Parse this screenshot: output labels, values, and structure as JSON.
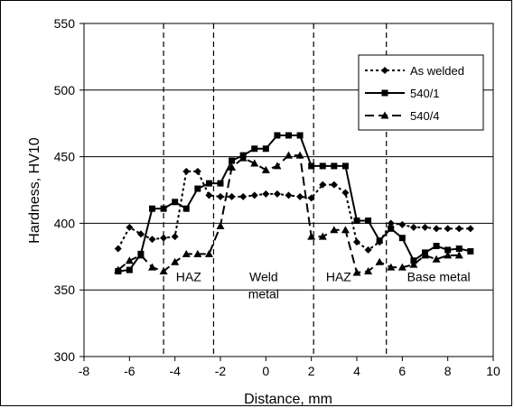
{
  "chart_data": {
    "type": "line",
    "title": "",
    "xlabel": "Distance, mm",
    "ylabel": "Hardness, HV10",
    "xlim": [
      -8,
      10
    ],
    "ylim": [
      300,
      550
    ],
    "xticks": [
      -8,
      -6,
      -4,
      -2,
      0,
      2,
      4,
      6,
      8,
      10
    ],
    "yticks": [
      300,
      350,
      400,
      450,
      500,
      550
    ],
    "grid": "horizontal",
    "legend_position": "top-right",
    "series": [
      {
        "name": "As welded",
        "line_style": "dotted",
        "marker": "diamond",
        "color": "#000000",
        "x": [
          -6.5,
          -6.0,
          -5.5,
          -5.0,
          -4.5,
          -4.0,
          -3.5,
          -3.0,
          -2.5,
          -2.0,
          -1.5,
          -1.0,
          -0.5,
          0.0,
          0.5,
          1.0,
          1.5,
          2.0,
          2.5,
          3.0,
          3.5,
          4.0,
          4.5,
          5.0,
          5.5,
          6.0,
          6.5,
          7.0,
          7.5,
          8.0,
          8.5,
          9.0
        ],
        "y": [
          381,
          397,
          392,
          388,
          389,
          390,
          439,
          439,
          421,
          420,
          420,
          420,
          421,
          422,
          422,
          421,
          420,
          419,
          429,
          429,
          423,
          386,
          380,
          386,
          400,
          399,
          397,
          397,
          396,
          396,
          396,
          396
        ]
      },
      {
        "name": "540/1",
        "line_style": "solid",
        "marker": "square",
        "color": "#000000",
        "x": [
          -6.5,
          -6.0,
          -5.5,
          -5.0,
          -4.5,
          -4.0,
          -3.5,
          -3.0,
          -2.5,
          -2.0,
          -1.5,
          -1.0,
          -0.5,
          0.0,
          0.5,
          1.0,
          1.5,
          2.0,
          2.5,
          3.0,
          3.5,
          4.0,
          4.5,
          5.0,
          5.5,
          6.0,
          6.5,
          7.0,
          7.5,
          8.0,
          8.5,
          9.0
        ],
        "y": [
          364,
          365,
          377,
          411,
          411,
          416,
          411,
          426,
          430,
          430,
          447,
          451,
          456,
          456,
          466,
          466,
          466,
          443,
          443,
          443,
          443,
          402,
          402,
          387,
          396,
          389,
          372,
          378,
          383,
          380,
          381,
          379
        ]
      },
      {
        "name": "540/4",
        "line_style": "dashed",
        "marker": "triangle",
        "color": "#000000",
        "x": [
          -6.5,
          -6.0,
          -5.5,
          -5.0,
          -4.5,
          -4.0,
          -3.5,
          -3.0,
          -2.5,
          -2.0,
          -1.5,
          -1.0,
          -0.5,
          0.0,
          0.5,
          1.0,
          1.5,
          2.0,
          2.5,
          3.0,
          3.5,
          4.0,
          4.5,
          5.0,
          5.5,
          6.0,
          6.5,
          7.0,
          7.5,
          8.0,
          8.5
        ],
        "y": [
          365,
          372,
          376,
          367,
          364,
          371,
          377,
          377,
          377,
          398,
          442,
          449,
          445,
          440,
          443,
          451,
          451,
          390,
          390,
          395,
          395,
          363,
          364,
          371,
          367,
          367,
          369,
          376,
          373,
          376,
          376
        ]
      }
    ],
    "vertical_lines": [
      -4.5,
      -2.3,
      2.1,
      5.3
    ],
    "annotations": [
      {
        "text": "HAZ",
        "x": -3.4,
        "y": 360
      },
      {
        "text": "Weld",
        "x": -0.1,
        "y": 360
      },
      {
        "text": "metal",
        "x": -0.1,
        "y": 347
      },
      {
        "text": "HAZ",
        "x": 3.2,
        "y": 360
      },
      {
        "text": "Base metal",
        "x": 7.6,
        "y": 360
      }
    ]
  }
}
